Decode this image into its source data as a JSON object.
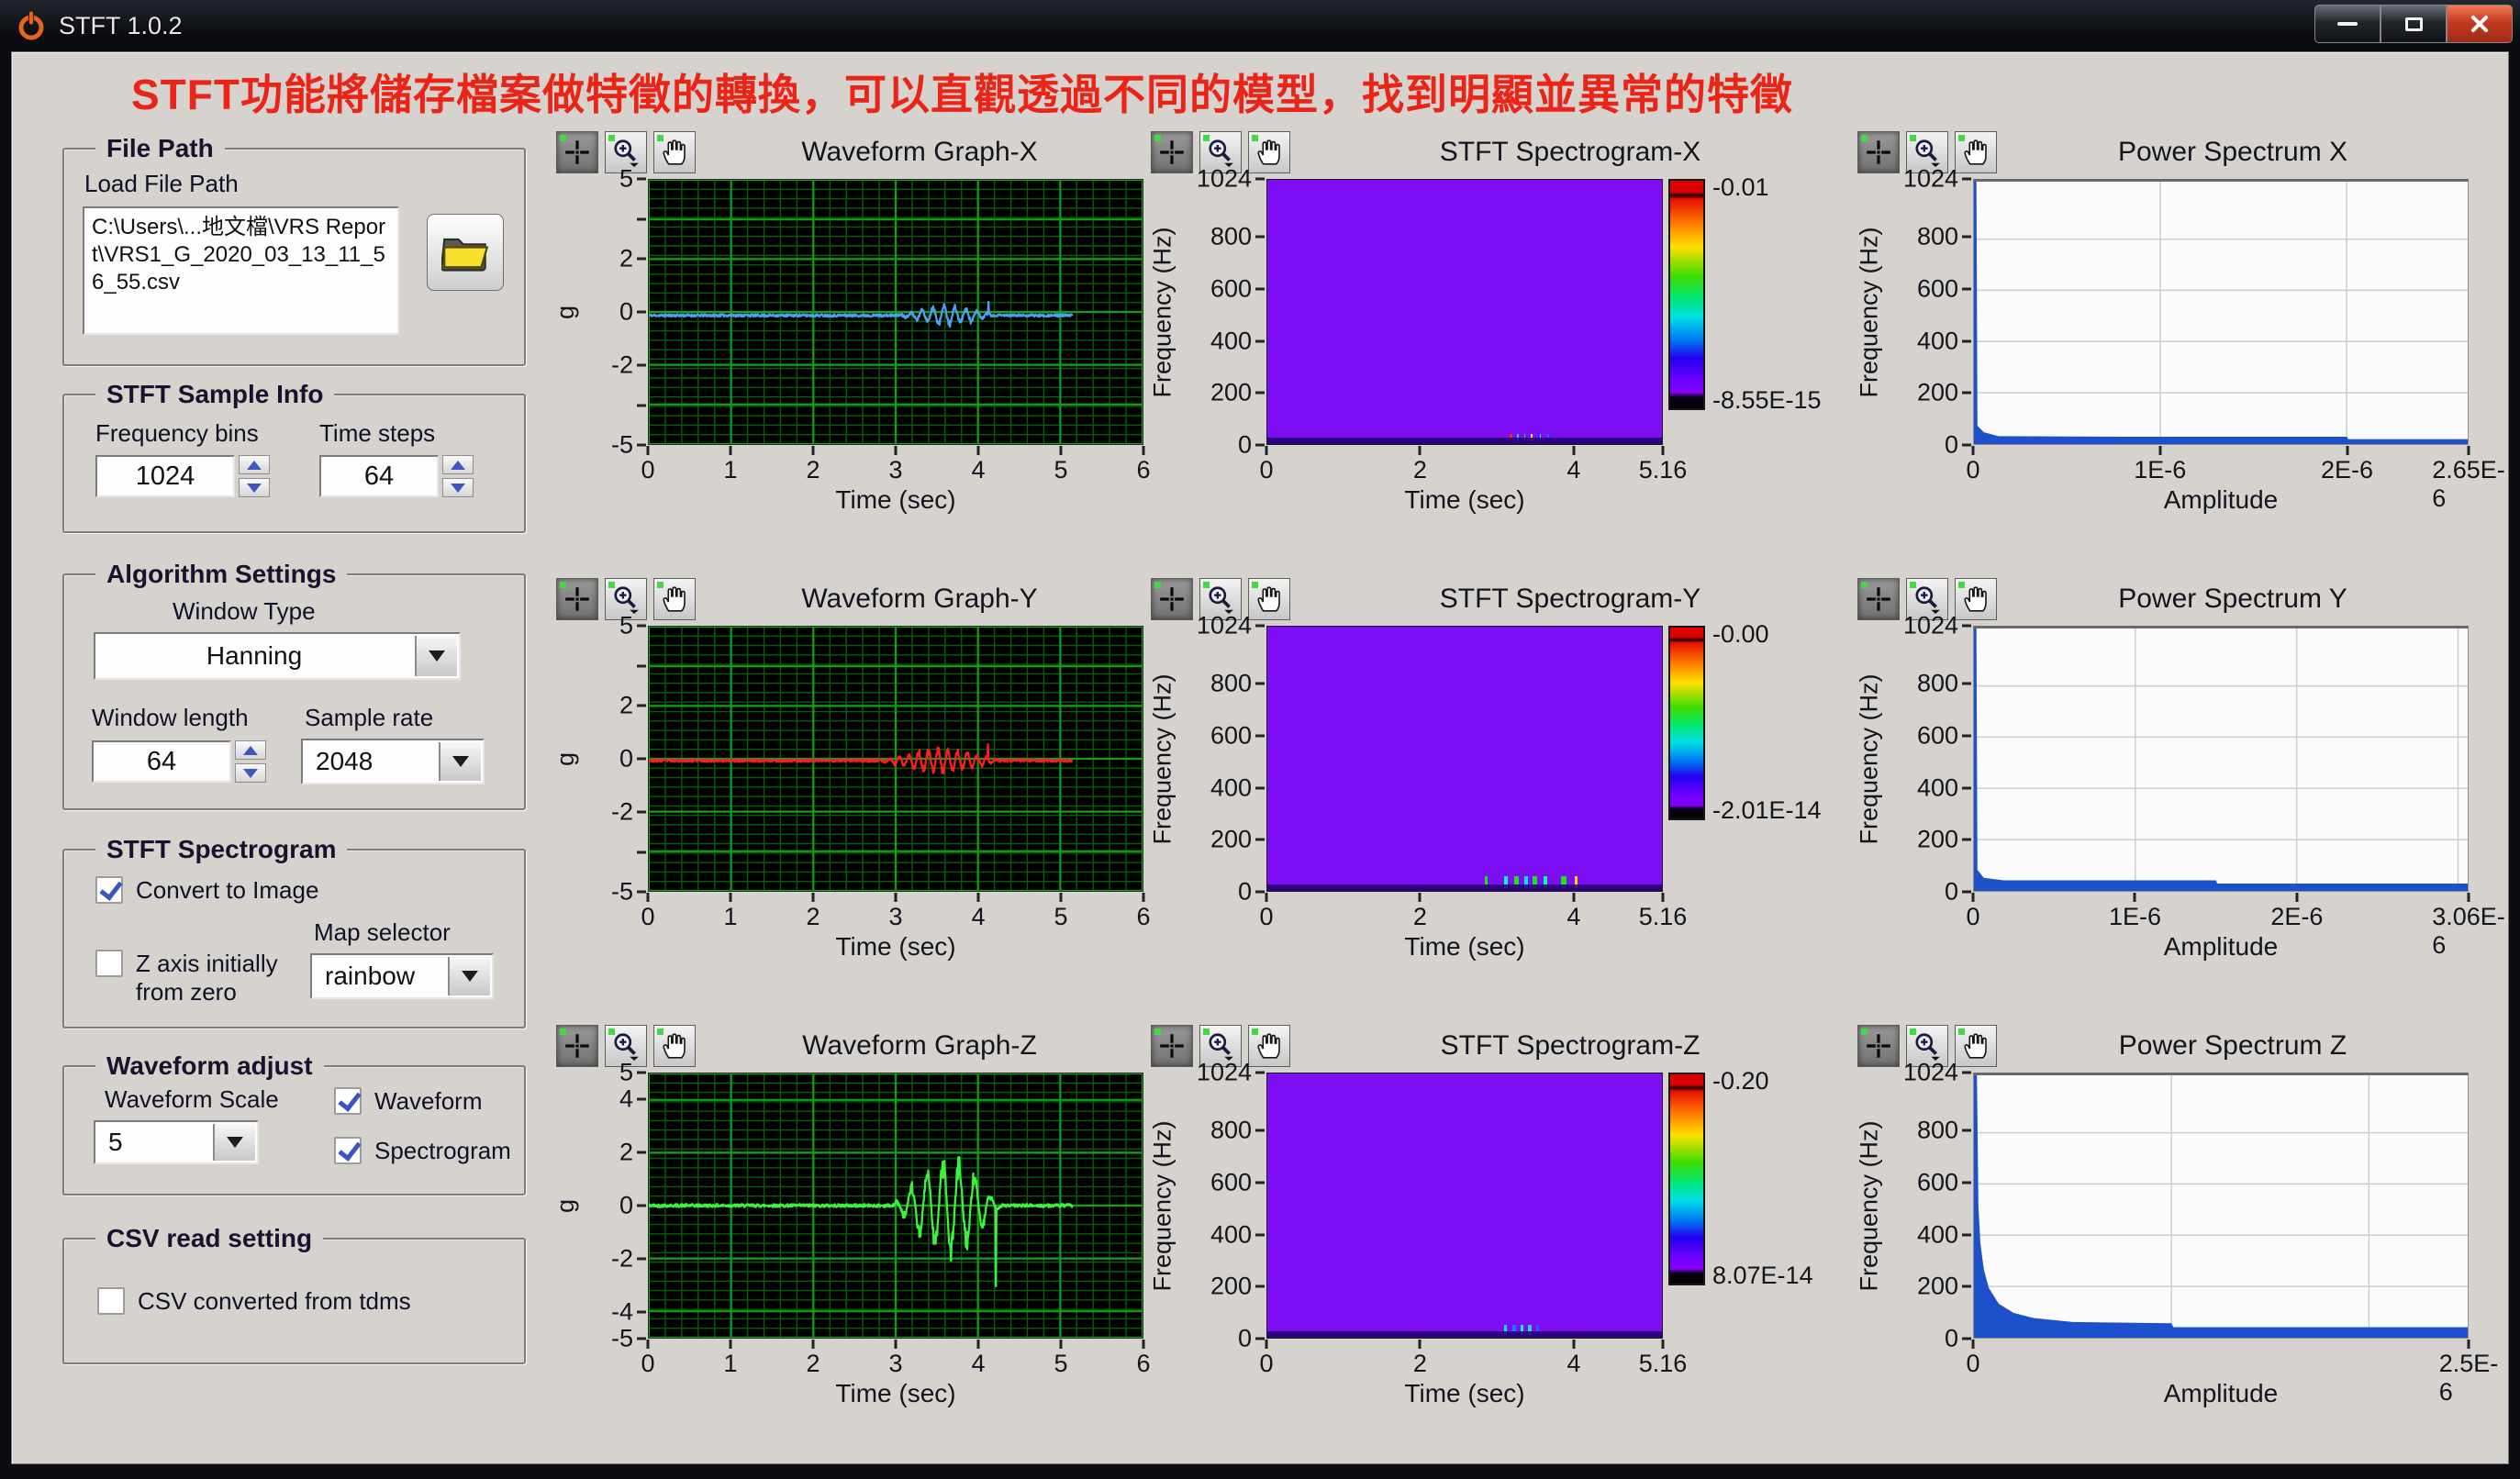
{
  "window": {
    "title": "STFT 1.0.2"
  },
  "banner": {
    "text": "STFT功能將儲存檔案做特徵的轉換，可以直觀透過不同的模型，找到明顯並異常的特徵",
    "color": "#ea2417"
  },
  "sidebar": {
    "file_path": {
      "title": "File Path",
      "label": "Load File Path",
      "value": "C:\\Users\\...地文檔\\VRS Report\\VRS1_G_2020_03_13_11_56_55.csv"
    },
    "sample_info": {
      "title": "STFT Sample Info",
      "freq_bins_label": "Frequency bins",
      "freq_bins": "1024",
      "time_steps_label": "Time steps",
      "time_steps": "64"
    },
    "algorithm": {
      "title": "Algorithm Settings",
      "window_type_label": "Window Type",
      "window_type": "Hanning",
      "window_length_label": "Window length",
      "window_length": "64",
      "sample_rate_label": "Sample rate",
      "sample_rate": "2048"
    },
    "stft_spectrogram": {
      "title": "STFT Spectrogram",
      "convert_label": "Convert to Image",
      "convert_checked": true,
      "zaxis_label": "Z axis initially from zero",
      "zaxis_checked": false,
      "map_label": "Map selector",
      "map_value": "rainbow"
    },
    "waveform_adjust": {
      "title": "Waveform adjust",
      "scale_label": "Waveform Scale",
      "scale_value": "5",
      "waveform_label": "Waveform",
      "waveform_checked": true,
      "spectrogram_label": "Spectrogram",
      "spectrogram_checked": true
    },
    "csv": {
      "title": "CSV read setting",
      "label": "CSV converted from tdms",
      "checked": false
    }
  },
  "graphs": {
    "waveforms": [
      {
        "title": "Waveform Graph-X",
        "ylabel": "g",
        "xlabel": "Time (sec)",
        "color": "#4ba0f0",
        "yticks": [
          [
            "5",
            0
          ],
          [
            "",
            0.15
          ],
          [
            "2",
            0.3
          ],
          [
            "0",
            0.5
          ],
          [
            "-2",
            0.7
          ],
          [
            "",
            0.85
          ],
          [
            "-5",
            1
          ]
        ],
        "xticks": [
          [
            "0",
            0
          ],
          [
            "1",
            0.1667
          ],
          [
            "2",
            0.3333
          ],
          [
            "3",
            0.5
          ],
          [
            "4",
            0.6667
          ],
          [
            "5",
            0.8333
          ],
          [
            "6",
            1
          ]
        ],
        "ymin": -5,
        "ymax": 5,
        "xmax": 6,
        "trace": {
          "seed": 11,
          "t_end": 5.15,
          "baseline": -0.13,
          "noise": 0.05,
          "burst": {
            "start": 3.02,
            "end": 4.25,
            "amp": 0.42,
            "freq": 7.5
          },
          "spikes": [
            [
              4.13,
              0.38
            ]
          ]
        }
      },
      {
        "title": "Waveform Graph-Y",
        "ylabel": "g",
        "xlabel": "Time (sec)",
        "color": "#ff1e1e",
        "yticks": [
          [
            "5",
            0
          ],
          [
            "",
            0.15
          ],
          [
            "2",
            0.3
          ],
          [
            "0",
            0.5
          ],
          [
            "-2",
            0.7
          ],
          [
            "",
            0.85
          ],
          [
            "-5",
            1
          ]
        ],
        "xticks": [
          [
            "0",
            0
          ],
          [
            "1",
            0.1667
          ],
          [
            "2",
            0.3333
          ],
          [
            "3",
            0.5
          ],
          [
            "4",
            0.6667
          ],
          [
            "5",
            0.8333
          ],
          [
            "6",
            1
          ]
        ],
        "ymin": -5,
        "ymax": 5,
        "xmax": 6,
        "trace": {
          "seed": 23,
          "t_end": 5.15,
          "baseline": -0.07,
          "noise": 0.045,
          "burst": {
            "start": 2.78,
            "end": 4.32,
            "amp": 0.5,
            "freq": 8.5
          },
          "spikes": [
            [
              4.12,
              0.55
            ]
          ]
        }
      },
      {
        "title": "Waveform Graph-Z",
        "ylabel": "g",
        "xlabel": "Time (sec)",
        "color": "#3df23d",
        "yticks": [
          [
            "5",
            0
          ],
          [
            "4",
            0.1
          ],
          [
            "2",
            0.3
          ],
          [
            "0",
            0.5
          ],
          [
            "-2",
            0.7
          ],
          [
            "-4",
            0.9
          ],
          [
            "-5",
            1
          ]
        ],
        "xticks": [
          [
            "0",
            0
          ],
          [
            "1",
            0.1667
          ],
          [
            "2",
            0.3333
          ],
          [
            "3",
            0.5
          ],
          [
            "4",
            0.6667
          ],
          [
            "5",
            0.8333
          ],
          [
            "6",
            1
          ]
        ],
        "ymin": -5,
        "ymax": 5,
        "xmax": 6,
        "trace": {
          "seed": 42,
          "t_end": 5.15,
          "baseline": 0.0,
          "noise": 0.06,
          "burst": {
            "start": 2.95,
            "end": 4.3,
            "amp": 2.1,
            "freq": 5.2
          },
          "spikes": [
            [
              4.22,
              -3.05
            ]
          ]
        }
      }
    ],
    "spectrograms": [
      {
        "title": "STFT Spectrogram-X",
        "ylabel": "Frequency (Hz)",
        "xlabel": "Time (sec)",
        "fill": "#7d0df2",
        "yticks": [
          [
            "1024",
            0
          ],
          [
            "800",
            0.2188
          ],
          [
            "600",
            0.4141
          ],
          [
            "400",
            0.6094
          ],
          [
            "200",
            0.8047
          ],
          [
            "0",
            1
          ]
        ],
        "xticks": [
          [
            "0",
            0
          ],
          [
            "2",
            0.3876
          ],
          [
            "4",
            0.7752
          ],
          [
            "5.16",
            1
          ]
        ],
        "cbar_top": "-0.01",
        "cbar_bottom": "-8.55E-15",
        "cbar_h": 0.87,
        "speck_h": 0.03,
        "specks": [
          [
            0.615,
            0.006,
            "#ff2a00"
          ],
          [
            0.632,
            0.005,
            "#00e6ff"
          ],
          [
            0.65,
            0.004,
            "#2bd82b"
          ],
          [
            0.668,
            0.005,
            "#ffd400"
          ],
          [
            0.69,
            0.004,
            "#00e6ff"
          ],
          [
            0.71,
            0.003,
            "#3355ff"
          ]
        ]
      },
      {
        "title": "STFT Spectrogram-Y",
        "ylabel": "Frequency (Hz)",
        "xlabel": "Time (sec)",
        "fill": "#7d0df2",
        "yticks": [
          [
            "1024",
            0
          ],
          [
            "800",
            0.2188
          ],
          [
            "600",
            0.4141
          ],
          [
            "400",
            0.6094
          ],
          [
            "200",
            0.8047
          ],
          [
            "0",
            1
          ]
        ],
        "xticks": [
          [
            "0",
            0
          ],
          [
            "2",
            0.3876
          ],
          [
            "4",
            0.7752
          ],
          [
            "5.16",
            1
          ]
        ],
        "cbar_top": "-0.00",
        "cbar_bottom": "-2.01E-14",
        "cbar_h": 0.73,
        "speck_h": 0.045,
        "specks": [
          [
            0.55,
            0.008,
            "#19e619"
          ],
          [
            0.6,
            0.01,
            "#00ffcc"
          ],
          [
            0.625,
            0.012,
            "#19e619"
          ],
          [
            0.65,
            0.01,
            "#00e6ff"
          ],
          [
            0.672,
            0.012,
            "#19e619"
          ],
          [
            0.7,
            0.009,
            "#00ffaa"
          ],
          [
            0.745,
            0.012,
            "#19e619"
          ],
          [
            0.78,
            0.007,
            "#ffd400"
          ]
        ]
      },
      {
        "title": "STFT Spectrogram-Z",
        "ylabel": "Frequency (Hz)",
        "xlabel": "Time (sec)",
        "fill": "#7d0df2",
        "yticks": [
          [
            "1024",
            0
          ],
          [
            "800",
            0.2188
          ],
          [
            "600",
            0.4141
          ],
          [
            "400",
            0.6094
          ],
          [
            "200",
            0.8047
          ],
          [
            "0",
            1
          ]
        ],
        "xticks": [
          [
            "0",
            0
          ],
          [
            "2",
            0.3876
          ],
          [
            "4",
            0.7752
          ],
          [
            "5.16",
            1
          ]
        ],
        "cbar_top": "-0.20",
        "cbar_bottom": "8.07E-14",
        "cbar_h": 0.8,
        "speck_h": 0.04,
        "specks": [
          [
            0.6,
            0.008,
            "#00e6ff"
          ],
          [
            0.62,
            0.01,
            "#2277ff"
          ],
          [
            0.641,
            0.008,
            "#00ffcc"
          ],
          [
            0.66,
            0.009,
            "#2bd8d8"
          ],
          [
            0.682,
            0.006,
            "#3355ff"
          ]
        ]
      }
    ],
    "power": [
      {
        "title": "Power Spectrum X",
        "ylabel": "Frequency (Hz)",
        "xlabel": "Amplitude",
        "color": "#1d51cc",
        "yticks": [
          [
            "1024",
            0
          ],
          [
            "800",
            0.2188
          ],
          [
            "600",
            0.4141
          ],
          [
            "400",
            0.6094
          ],
          [
            "200",
            0.8047
          ],
          [
            "0",
            1
          ]
        ],
        "xticks": [
          [
            "0",
            0
          ],
          [
            "1E-6",
            0.3774
          ],
          [
            "2E-6",
            0.7547
          ],
          [
            "2.65E-6",
            1
          ]
        ],
        "grid_x": [
          0.3774,
          0.7547
        ],
        "outline": [
          [
            0,
            1
          ],
          [
            0.005,
            1
          ],
          [
            0.007,
            0.07
          ],
          [
            0.02,
            0.045
          ],
          [
            0.05,
            0.03
          ],
          [
            0.3,
            0.028
          ],
          [
            0.755,
            0.028
          ],
          [
            0.758,
            0.019
          ],
          [
            1,
            0.019
          ]
        ]
      },
      {
        "title": "Power Spectrum Y",
        "ylabel": "Frequency (Hz)",
        "xlabel": "Amplitude",
        "color": "#1d51cc",
        "yticks": [
          [
            "1024",
            0
          ],
          [
            "800",
            0.2188
          ],
          [
            "600",
            0.4141
          ],
          [
            "400",
            0.6094
          ],
          [
            "200",
            0.8047
          ],
          [
            "0",
            1
          ]
        ],
        "xticks": [
          [
            "0",
            0
          ],
          [
            "1E-6",
            0.3268
          ],
          [
            "2E-6",
            0.6536
          ],
          [
            "3.06E-6",
            1
          ]
        ],
        "grid_x": [
          0.3268,
          0.6536,
          0.9804
        ],
        "outline": [
          [
            0,
            1
          ],
          [
            0.005,
            1
          ],
          [
            0.007,
            0.08
          ],
          [
            0.02,
            0.05
          ],
          [
            0.06,
            0.04
          ],
          [
            0.49,
            0.04
          ],
          [
            0.493,
            0.028
          ],
          [
            1,
            0.028
          ]
        ]
      },
      {
        "title": "Power Spectrum Z",
        "ylabel": "Frequency (Hz)",
        "xlabel": "Amplitude",
        "color": "#1d51cc",
        "yticks": [
          [
            "1024",
            0
          ],
          [
            "800",
            0.2188
          ],
          [
            "600",
            0.4141
          ],
          [
            "400",
            0.6094
          ],
          [
            "200",
            0.8047
          ],
          [
            "0",
            1
          ]
        ],
        "xticks": [
          [
            "0",
            0
          ],
          [
            "2.5E-6",
            1
          ]
        ],
        "grid_x": [
          0.4,
          0.8
        ],
        "outline": [
          [
            0,
            1
          ],
          [
            0.006,
            1
          ],
          [
            0.009,
            0.5
          ],
          [
            0.013,
            0.36
          ],
          [
            0.02,
            0.26
          ],
          [
            0.03,
            0.19
          ],
          [
            0.05,
            0.13
          ],
          [
            0.08,
            0.095
          ],
          [
            0.12,
            0.075
          ],
          [
            0.2,
            0.06
          ],
          [
            0.4,
            0.055
          ],
          [
            0.404,
            0.04
          ],
          [
            1,
            0.04
          ]
        ]
      }
    ],
    "palette_tools": [
      "cursor",
      "zoom",
      "pan"
    ]
  }
}
